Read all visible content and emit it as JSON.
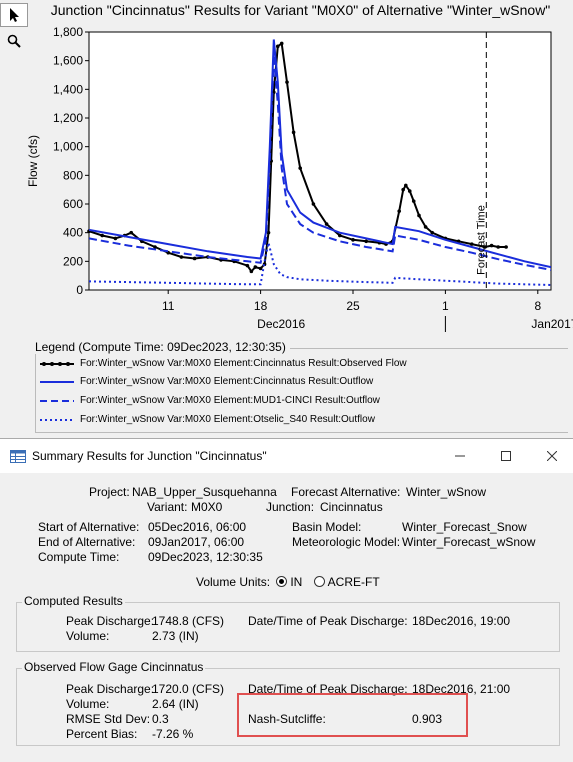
{
  "toolbar": {
    "pointer_icon": "arrow-pointer-icon",
    "zoom_icon": "magnifier-icon"
  },
  "chart_data": {
    "type": "line",
    "title": "Junction \"Cincinnatus\" Results for Variant \"M0X0\" of Alternative \"Winter_wSnow\"",
    "ylabel": "Flow (cfs)",
    "xlabel": "",
    "ylim": [
      0,
      1800
    ],
    "yticks": [
      "0",
      "200",
      "400",
      "600",
      "800",
      "1,000",
      "1,200",
      "1,400",
      "1,600",
      "1,800"
    ],
    "xlim_days": [
      5.0,
      40.0
    ],
    "xticks": [
      {
        "day": 11,
        "label": "11"
      },
      {
        "day": 18,
        "label": "18"
      },
      {
        "day": 25,
        "label": "25"
      },
      {
        "day": 32,
        "label": "1"
      },
      {
        "day": 39,
        "label": "8"
      }
    ],
    "month_labels": [
      {
        "day": 18.5,
        "label": "Dec2016"
      },
      {
        "day": 39.2,
        "label": "Jan2017"
      }
    ],
    "forecast_time": {
      "day": 35.1,
      "label": "Forecast Time"
    },
    "grid": false,
    "series": [
      {
        "name": "For:Winter_wSnow Var:M0X0 Element:Cincinnatus Result:Observed Flow",
        "color": "#000000",
        "style": "solid-markers",
        "x": [
          5.0,
          6.0,
          7.0,
          7.7,
          8.2,
          9.0,
          10.0,
          11.0,
          12.0,
          13.0,
          14.0,
          15.0,
          16.0,
          17.0,
          17.3,
          17.6,
          18.0,
          18.3,
          18.6,
          18.8,
          19.0,
          19.3,
          19.6,
          20.0,
          20.5,
          21.0,
          22.0,
          23.0,
          24.0,
          25.0,
          26.0,
          27.0,
          27.5,
          28.0,
          28.5,
          28.8,
          29.0,
          29.3,
          29.6,
          30.0,
          30.5,
          31.0,
          32.0,
          33.0,
          34.0,
          35.0,
          35.5,
          36.0,
          36.6
        ],
        "y": [
          410,
          380,
          360,
          380,
          400,
          340,
          300,
          260,
          230,
          220,
          230,
          210,
          200,
          170,
          130,
          160,
          150,
          180,
          400,
          900,
          1380,
          1700,
          1720,
          1450,
          1100,
          850,
          600,
          460,
          380,
          350,
          340,
          330,
          320,
          340,
          550,
          700,
          730,
          690,
          620,
          520,
          440,
          400,
          360,
          340,
          320,
          300,
          310,
          300,
          300
        ]
      },
      {
        "name": "For:Winter_wSnow Var:M0X0 Element:Cincinnatus Result:Outflow",
        "color": "#1a2ddb",
        "style": "solid",
        "x": [
          5.0,
          8.0,
          11.0,
          14.0,
          17.0,
          18.0,
          18.4,
          18.7,
          19.0,
          19.3,
          19.6,
          20.0,
          21.0,
          22.0,
          24.0,
          26.0,
          28.0,
          28.2,
          30.0,
          32.0,
          34.0,
          36.0,
          38.0,
          40.0
        ],
        "y": [
          420,
          370,
          320,
          270,
          230,
          220,
          400,
          1000,
          1748,
          1450,
          950,
          700,
          540,
          470,
          400,
          360,
          320,
          440,
          410,
          350,
          300,
          250,
          200,
          160
        ]
      },
      {
        "name": "For:Winter_wSnow Var:M0X0 Element:MUD1-CINCI Result:Outflow",
        "color": "#1a2ddb",
        "style": "dashed",
        "x": [
          5.0,
          8.0,
          11.0,
          14.0,
          17.0,
          18.0,
          18.4,
          18.7,
          19.0,
          19.3,
          19.6,
          20.0,
          21.0,
          22.0,
          24.0,
          26.0,
          28.0,
          28.2,
          30.0,
          32.0,
          34.0,
          36.0,
          38.0,
          40.0
        ],
        "y": [
          360,
          310,
          270,
          230,
          200,
          190,
          350,
          900,
          1640,
          1300,
          850,
          600,
          460,
          400,
          340,
          300,
          270,
          380,
          350,
          300,
          260,
          215,
          175,
          140
        ]
      },
      {
        "name": "For:Winter_wSnow Var:M0X0 Element:Otselic_S40 Result:Outflow",
        "color": "#1a2ddb",
        "style": "dotted",
        "x": [
          5.0,
          8.0,
          11.0,
          14.0,
          17.0,
          18.0,
          18.3,
          18.6,
          19.0,
          19.5,
          20.0,
          21.0,
          23.0,
          26.0,
          28.0,
          28.2,
          30.0,
          33.0,
          36.0,
          40.0
        ],
        "y": [
          60,
          55,
          50,
          45,
          40,
          40,
          200,
          330,
          180,
          110,
          90,
          75,
          65,
          55,
          50,
          85,
          75,
          60,
          45,
          35
        ]
      }
    ]
  },
  "legend": {
    "title": "Legend (Compute Time: 09Dec2023, 12:30:35)",
    "items": [
      "For:Winter_wSnow Var:M0X0 Element:Cincinnatus Result:Observed Flow",
      "For:Winter_wSnow Var:M0X0 Element:Cincinnatus Result:Outflow",
      "For:Winter_wSnow Var:M0X0 Element:MUD1-CINCI Result:Outflow",
      "For:Winter_wSnow Var:M0X0 Element:Otselic_S40 Result:Outflow"
    ]
  },
  "dialog": {
    "title": "Summary Results for Junction \"Cincinnatus\"",
    "project_label": "Project:",
    "project_value": "NAB_Upper_Susquehanna",
    "forecast_alt_label": "Forecast Alternative:",
    "forecast_alt_value": "Winter_wSnow",
    "variant_label": "Variant:",
    "variant_value": "M0X0",
    "junction_label": "Junction:",
    "junction_value": "Cincinnatus",
    "start_label": "Start of Alternative:",
    "start_value": "05Dec2016, 06:00",
    "end_label": "End of Alternative:",
    "end_value": "09Jan2017, 06:00",
    "compute_label": "Compute Time:",
    "compute_value": "09Dec2023, 12:30:35",
    "basin_label": "Basin Model:",
    "basin_value": "Winter_Forecast_Snow",
    "met_label": "Meteorologic Model:",
    "met_value": "Winter_Forecast_wSnow",
    "volume_units_label": "Volume Units:",
    "unit_in": "IN",
    "unit_acre": "ACRE-FT",
    "computed": {
      "title": "Computed Results",
      "peak_label": "Peak Discharge:",
      "peak_value": "1748.8 (CFS)",
      "volume_label": "Volume:",
      "volume_value": "2.73 (IN)",
      "date_label": "Date/Time of Peak Discharge:",
      "date_value": "18Dec2016, 19:00"
    },
    "observed": {
      "title": "Observed Flow Gage Cincinnatus",
      "peak_label": "Peak Discharge:",
      "peak_value": "1720.0 (CFS)",
      "volume_label": "Volume:",
      "volume_value": "2.64 (IN)",
      "rmse_label": "RMSE Std Dev:",
      "rmse_value": "0.3",
      "bias_label": "Percent Bias:",
      "bias_value": "-7.26 %",
      "date_label": "Date/Time of Peak Discharge:",
      "date_value": "18Dec2016, 21:00",
      "nash_label": "Nash-Sutcliffe:",
      "nash_value": "0.903"
    }
  }
}
